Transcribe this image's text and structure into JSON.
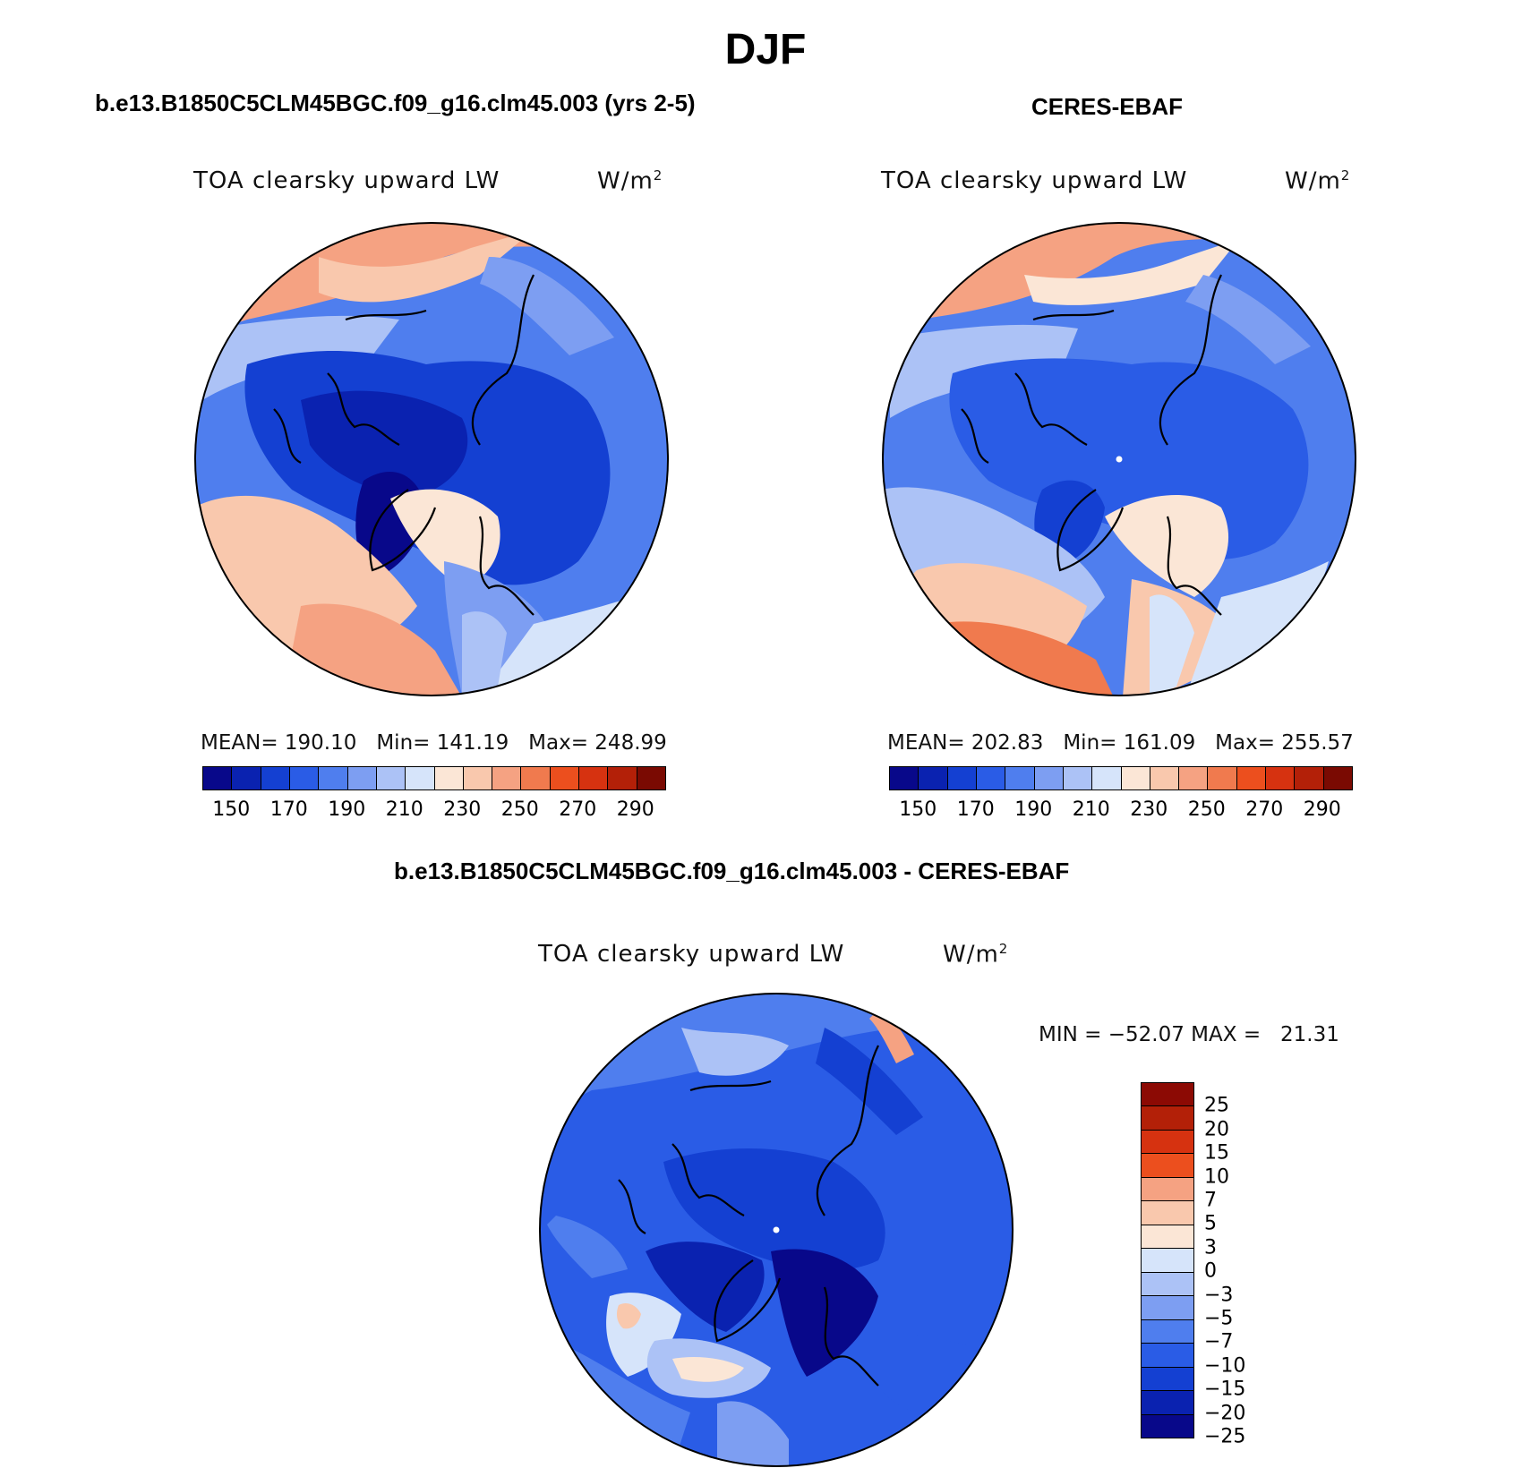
{
  "figure": {
    "season": "DJF",
    "left_title": "b.e13.B1850C5CLM45BGC.f09_g16.clm45.003 (yrs 2-5)",
    "right_title": "CERES-EBAF",
    "diff_title": "b.e13.B1850C5CLM45BGC.f09_g16.clm45.003 - CERES-EBAF"
  },
  "panels": {
    "model": {
      "variable": "TOA clearsky upward LW",
      "units_base": "W/m",
      "units_exp": "2",
      "mean_label": "MEAN=",
      "mean": "190.10",
      "min_label": "Min=",
      "min": "141.19",
      "max_label": "Max=",
      "max": "248.99"
    },
    "obs": {
      "variable": "TOA clearsky upward LW",
      "units_base": "W/m",
      "units_exp": "2",
      "mean_label": "MEAN=",
      "mean": "202.83",
      "min_label": "Min=",
      "min": "161.09",
      "max_label": "Max=",
      "max": "255.57"
    },
    "diff": {
      "variable": "TOA clearsky upward LW",
      "units_base": "W/m",
      "units_exp": "2",
      "min_label": "MIN =",
      "min": "−52.07",
      "max_label": "MAX =",
      "max": "21.31"
    }
  },
  "colorbars": {
    "abs": {
      "colors": [
        "#08088a",
        "#0a22b0",
        "#1440d2",
        "#2a5ce6",
        "#4f7eee",
        "#7d9ef2",
        "#acc2f6",
        "#d6e4fa",
        "#fbe6d6",
        "#f9c8ad",
        "#f5a282",
        "#f07a4e",
        "#ec4f1e",
        "#d63210",
        "#b32008",
        "#7a0a02"
      ],
      "tick_labels": [
        "150",
        "170",
        "190",
        "210",
        "230",
        "250",
        "270",
        "290"
      ]
    },
    "diff": {
      "colors_top_to_bottom": [
        "#8c0a04",
        "#b32008",
        "#d63210",
        "#ec4f1e",
        "#f5a282",
        "#f9c8ad",
        "#fbe6d6",
        "#d6e4fa",
        "#acc2f6",
        "#7d9ef2",
        "#4f7eee",
        "#2a5ce6",
        "#1440d2",
        "#0a22b0",
        "#08088a"
      ],
      "tick_labels": [
        "25",
        "20",
        "15",
        "10",
        "7",
        "5",
        "3",
        "0",
        "−3",
        "−5",
        "−7",
        "−10",
        "−15",
        "−20",
        "−25"
      ]
    }
  }
}
